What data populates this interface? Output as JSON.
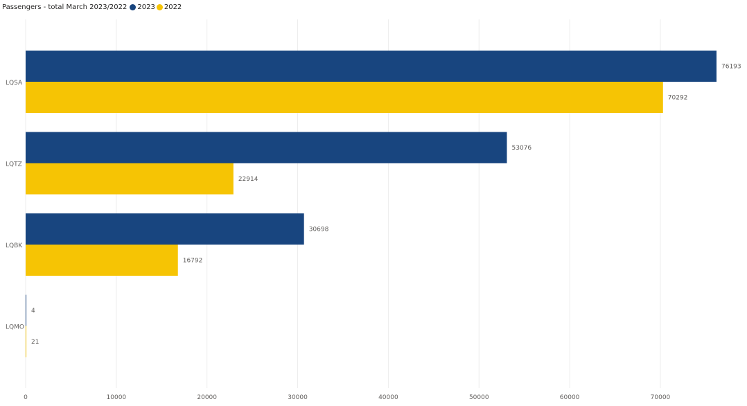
{
  "colors": {
    "2023": "#18457f",
    "2022": "#f6c404",
    "grid": "#ececec"
  },
  "chart_data": {
    "type": "bar",
    "orientation": "horizontal",
    "title": "Passengers - total March 2023/2022",
    "categories": [
      "LQSA",
      "LQTZ",
      "LQBK",
      "LQMO"
    ],
    "series": [
      {
        "name": "2023",
        "values": [
          76193,
          53076,
          30698,
          4
        ]
      },
      {
        "name": "2022",
        "values": [
          70292,
          22914,
          16792,
          21
        ]
      }
    ],
    "xlim": [
      0,
      76193
    ],
    "x_ticks": [
      0,
      10000,
      20000,
      30000,
      40000,
      50000,
      60000,
      70000
    ],
    "x_tick_labels": [
      "0",
      "10000",
      "20000",
      "30000",
      "40000",
      "50000",
      "60000",
      "70000"
    ],
    "grid": true,
    "legend_position": "top-left",
    "data_labels": true
  }
}
